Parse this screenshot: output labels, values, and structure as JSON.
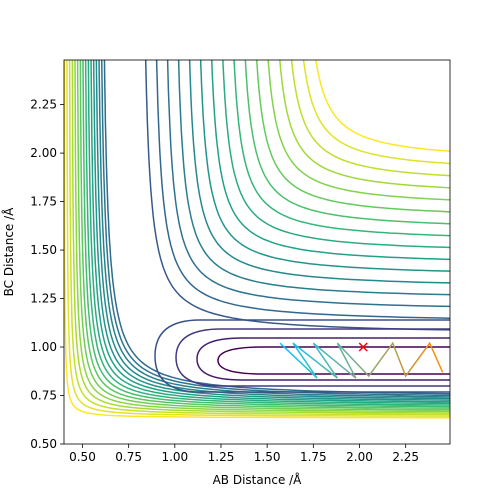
{
  "chart_data": {
    "type": "contour",
    "xlabel": "AB Distance /Å",
    "ylabel": "BC Distance /Å",
    "xlim": [
      0.4,
      2.49
    ],
    "ylim": [
      0.5,
      2.48
    ],
    "xticks": [
      {
        "value": 0.5,
        "label": "0.50"
      },
      {
        "value": 0.75,
        "label": "0.75"
      },
      {
        "value": 1.0,
        "label": "1.00"
      },
      {
        "value": 1.25,
        "label": "1.25"
      },
      {
        "value": 1.5,
        "label": "1.50"
      },
      {
        "value": 1.75,
        "label": "1.75"
      },
      {
        "value": 2.0,
        "label": "2.00"
      },
      {
        "value": 2.25,
        "label": "2.25"
      }
    ],
    "yticks": [
      {
        "value": 0.5,
        "label": "0.50"
      },
      {
        "value": 0.75,
        "label": "0.75"
      },
      {
        "value": 1.0,
        "label": "1.00"
      },
      {
        "value": 1.25,
        "label": "1.25"
      },
      {
        "value": 1.5,
        "label": "1.50"
      },
      {
        "value": 1.75,
        "label": "1.75"
      },
      {
        "value": 2.0,
        "label": "2.00"
      },
      {
        "value": 2.25,
        "label": "2.25"
      }
    ],
    "series": [
      {
        "x": [
          1.57,
          1.77,
          1.64,
          1.88,
          1.75,
          1.98,
          1.88,
          2.05,
          2.18,
          2.25,
          2.38,
          2.45
        ],
        "y": [
          1.02,
          0.84,
          1.02,
          0.84,
          1.02,
          0.84,
          1.02,
          0.85,
          1.02,
          0.85,
          1.02,
          0.87
        ],
        "colors": [
          "#00c8ff",
          "#ff8c00"
        ]
      }
    ],
    "marker": {
      "x": 2.02,
      "y": 1.0,
      "color": "#ff0000"
    }
  }
}
